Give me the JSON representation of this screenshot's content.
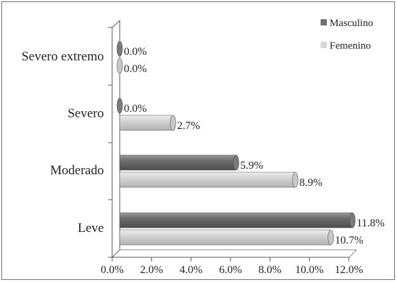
{
  "chart_data": {
    "type": "bar",
    "orientation": "horizontal",
    "categories": [
      "Severo extremo",
      "Severo",
      "Moderado",
      "Leve"
    ],
    "series": [
      {
        "name": "Masculino",
        "values": [
          0.0,
          0.0,
          5.9,
          11.8
        ],
        "labels": [
          "0.0%",
          "0.0%",
          "5.9%",
          "11.8%"
        ],
        "color": "#6e6e6e"
      },
      {
        "name": "Femenino",
        "values": [
          0.0,
          2.7,
          8.9,
          10.7
        ],
        "labels": [
          "0.0%",
          "2.7%",
          "8.9%",
          "10.7%"
        ],
        "color": "#d6d6d6"
      }
    ],
    "xlim": [
      0,
      12
    ],
    "x_ticks": [
      0,
      2,
      4,
      6,
      8,
      10,
      12
    ],
    "x_tick_labels": [
      "0.0%",
      "2.0%",
      "4.0%",
      "6.0%",
      "8.0%",
      "10.0%",
      "12.0%"
    ],
    "legend_position": "top-right",
    "grid": false
  }
}
